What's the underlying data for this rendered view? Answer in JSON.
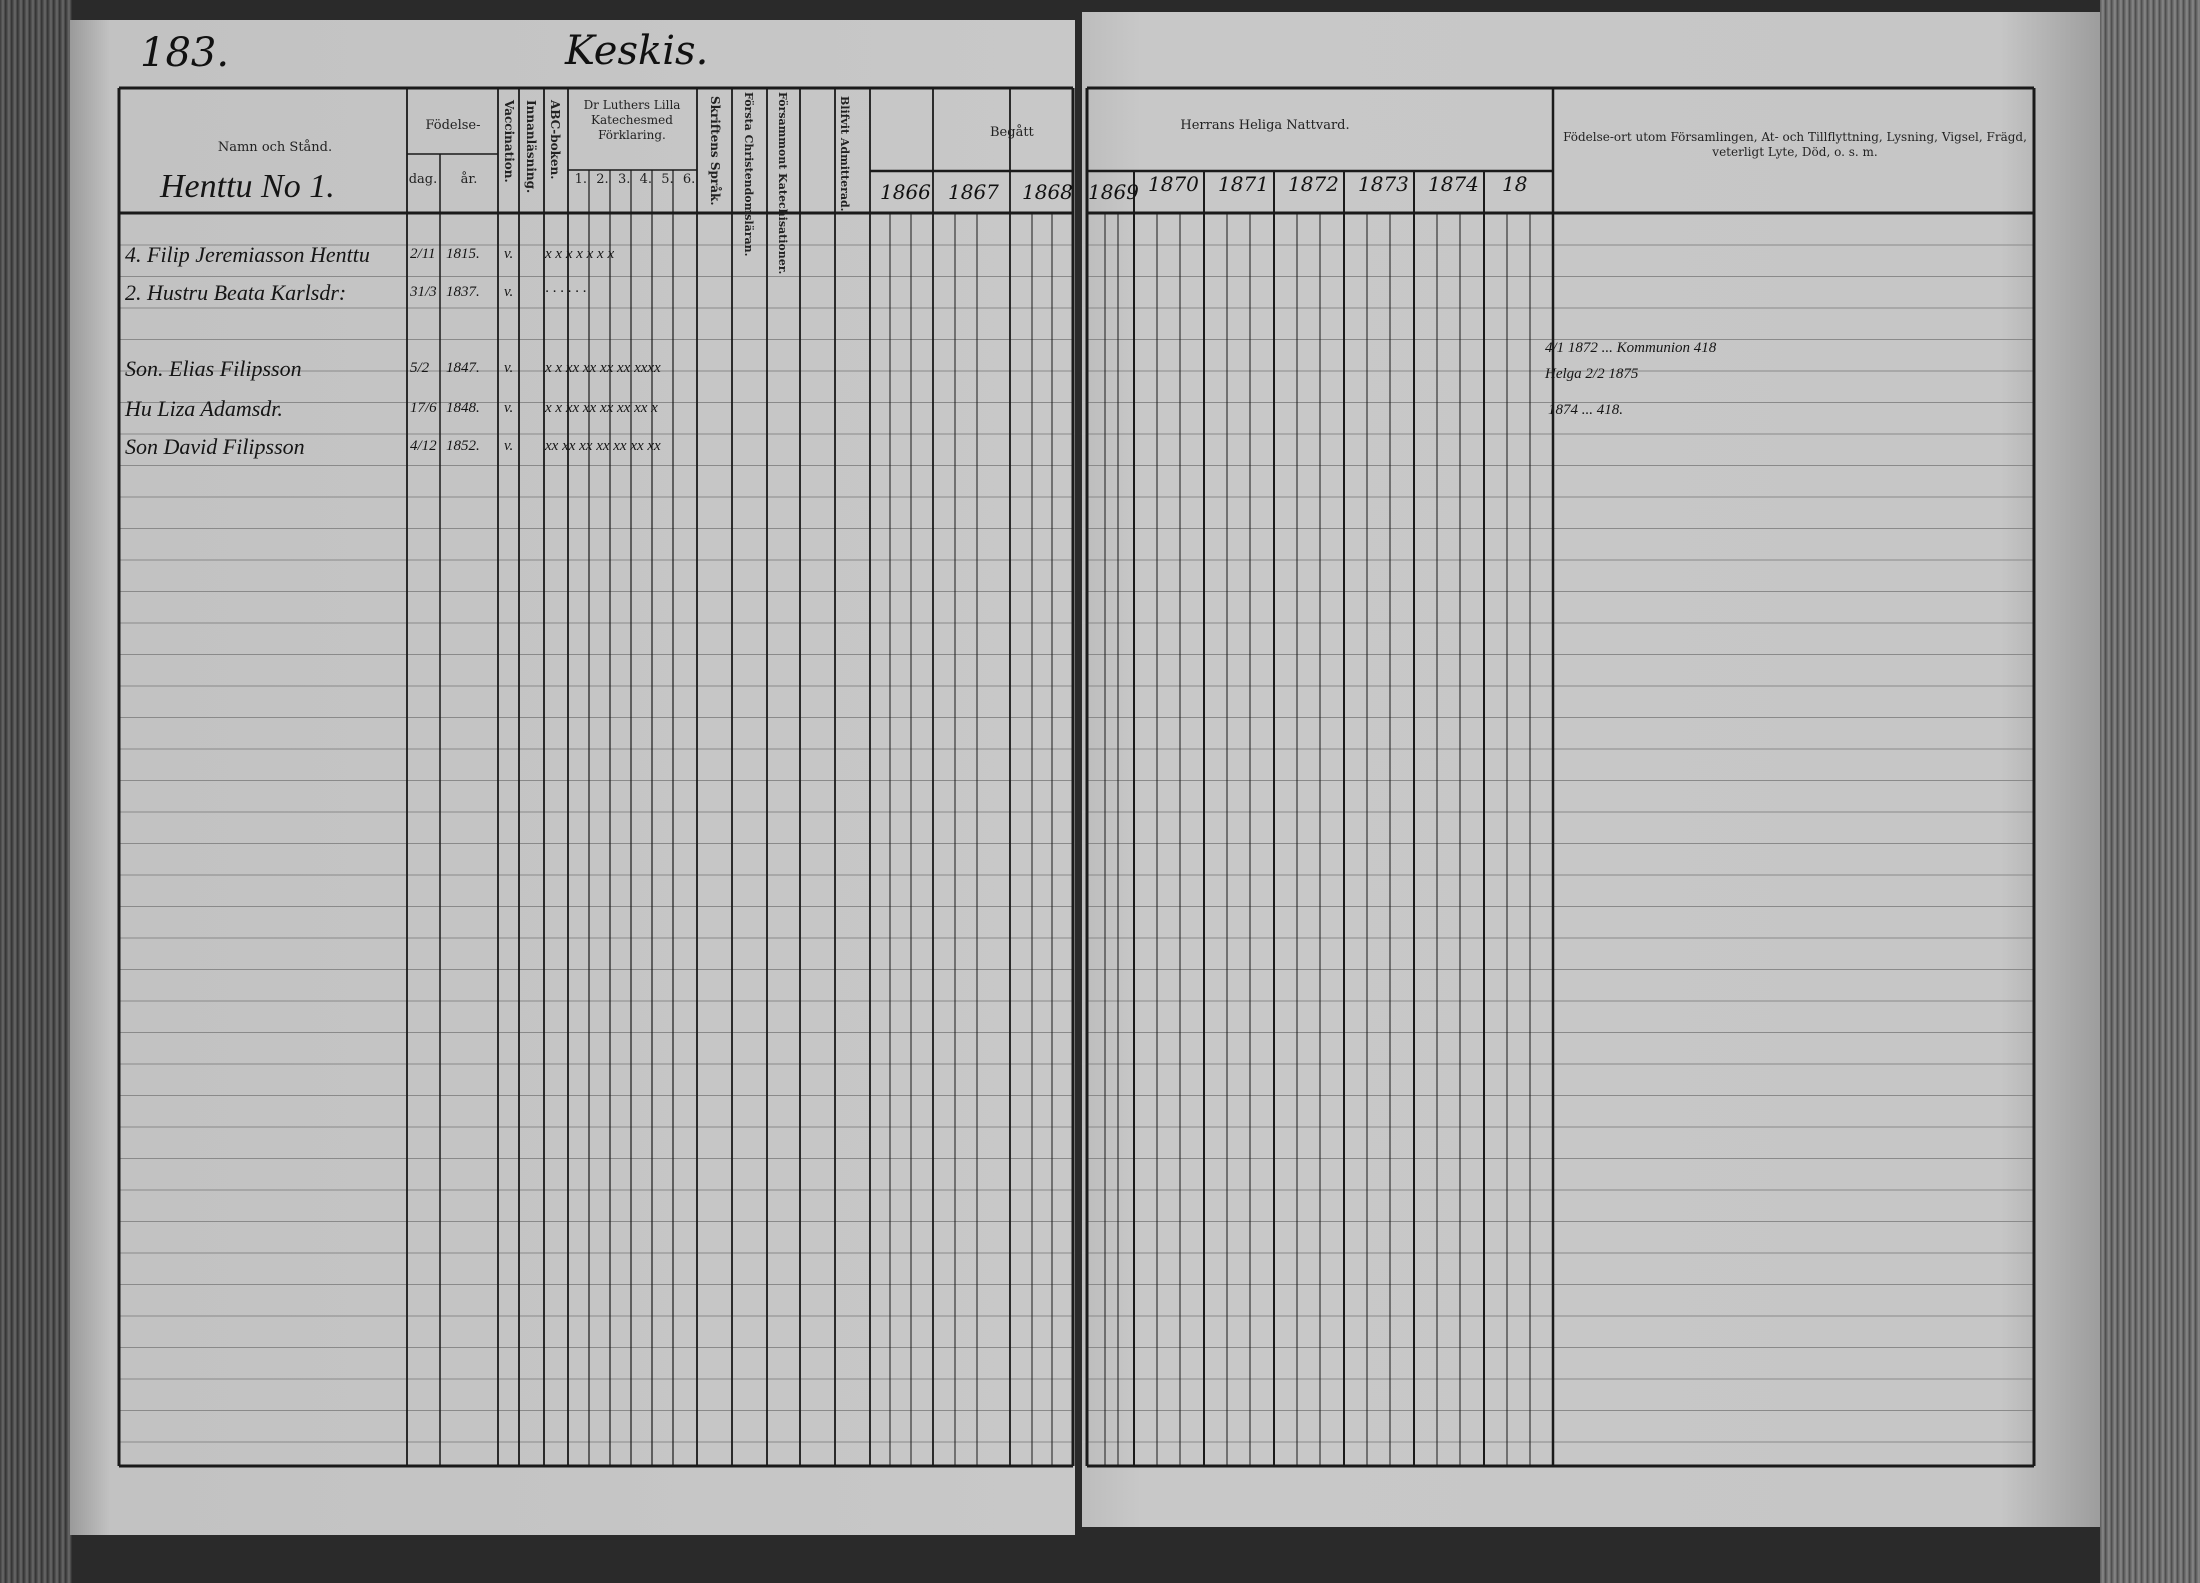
{
  "page_number": "183.",
  "village": "Keskis.",
  "header": {
    "name_col": "Namn och Stånd.",
    "birth": "Födelse-",
    "day": "dag.",
    "year": "år.",
    "vaccination": "Vaccination.",
    "reading": "Innanläsning.",
    "abc": "ABC-boken.",
    "catechism": "Dr Luthers Lilla Katechesmed Förklaring.",
    "cat_parts": [
      "1.",
      "2.",
      "3.",
      "4.",
      "5.",
      "6."
    ],
    "scripture": "Skriftens Språk.",
    "christianity": "Första Christendomsläran.",
    "confirmation": "Försammont Katechisationer.",
    "admitted": "Blifvit Admitterad.",
    "begatt": "Begått",
    "communion": "Herrans Heliga Nattvard.",
    "remarks": "Födelse-ort utom Församlingen, At- och Tillflyttning, Lysning, Vigsel, Frägd, veterligt Lyte, Död, o. s. m."
  },
  "household": "Henttu No 1.",
  "years": [
    "1866",
    "1867",
    "1868",
    "1869",
    "1870",
    "1871",
    "1872",
    "1873",
    "1874",
    "18"
  ],
  "rows": [
    {
      "name": "4. Filip Jeremiasson Henttu",
      "day": "2/11",
      "year": "1815.",
      "vacc": "v.",
      "marks": "x x x x x x x"
    },
    {
      "name": "2. Hustru Beata Karlsdr:",
      "day": "31/3",
      "year": "1837.",
      "vacc": "v.",
      "marks": "· · · · · ·"
    },
    {
      "name": "Son. Elias Filipsson",
      "day": "5/2",
      "year": "1847.",
      "vacc": "v.",
      "marks": "x x xx xx xx xx xxxx"
    },
    {
      "name": "Hu Liza Adamsdr.",
      "day": "17/6",
      "year": "1848.",
      "vacc": "v.",
      "marks": "x x xx xx xx xx xx x"
    },
    {
      "name": "Son David Filipsson",
      "day": "4/12",
      "year": "1852.",
      "vacc": "v.",
      "marks": "xx xx xx xx xx xx xx"
    }
  ],
  "remarks": [
    "4/1 1872 ... Kommunion 418",
    "Helga 2/2 1875",
    "1874 ... 418."
  ]
}
